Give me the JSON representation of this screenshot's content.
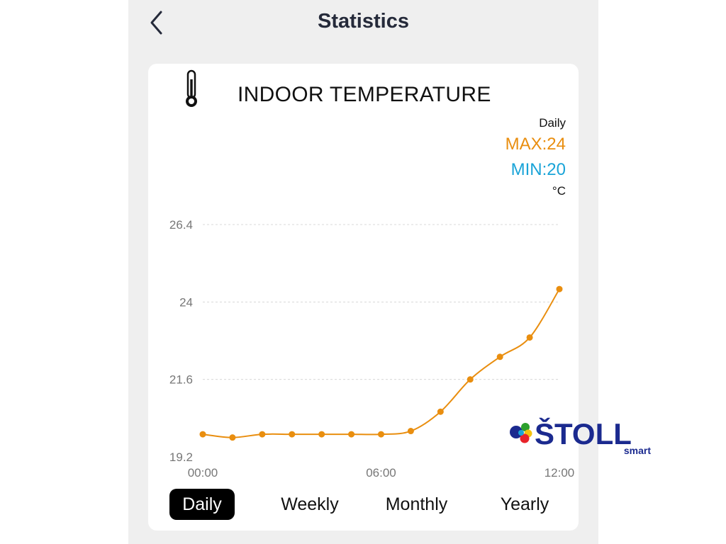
{
  "header": {
    "title": "Statistics",
    "back_icon": "chevron-left-icon"
  },
  "card": {
    "icon": "thermometer-icon",
    "title": "INDOOR TEMPERATURE",
    "period": "Daily",
    "max_label": "MAX:24",
    "min_label": "MIN:20",
    "unit": "°C"
  },
  "colors": {
    "line": "#e98e0f",
    "max": "#e98e0f",
    "min": "#1aa4d8",
    "gridline": "#d8d8d8",
    "tick": "#777777"
  },
  "chart_data": {
    "type": "line",
    "title": "INDOOR TEMPERATURE",
    "x_tick_labels": [
      "00:00",
      "06:00",
      "12:00"
    ],
    "y_tick_labels": [
      "26.4",
      "24",
      "21.6",
      "19.2"
    ],
    "y_ticks": [
      26.4,
      24,
      21.6,
      19.2
    ],
    "ylim": [
      19.2,
      26.4
    ],
    "xlim": [
      0,
      12
    ],
    "x": [
      0,
      1,
      2,
      3,
      4,
      5,
      6,
      7,
      8,
      9,
      10,
      11,
      12
    ],
    "series": [
      {
        "values": [
          19.9,
          19.8,
          19.9,
          19.9,
          19.9,
          19.9,
          19.9,
          20.0,
          20.6,
          21.6,
          22.3,
          22.9,
          24.4
        ]
      }
    ],
    "grid": "horizontal dashed",
    "legend": "none"
  },
  "tabs": [
    {
      "label": "Daily",
      "active": true
    },
    {
      "label": "Weekly",
      "active": false
    },
    {
      "label": "Monthly",
      "active": false
    },
    {
      "label": "Yearly",
      "active": false
    }
  ],
  "logo": {
    "text": "ŠTOLL",
    "subtext": "smart"
  }
}
